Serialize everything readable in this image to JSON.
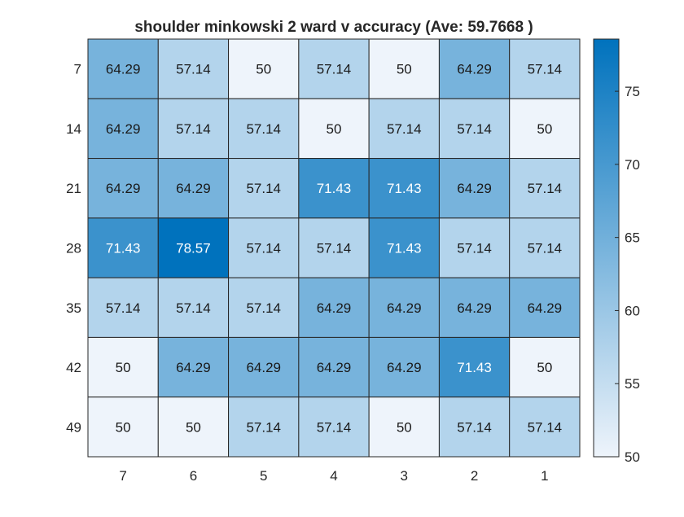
{
  "chart_data": {
    "type": "heatmap",
    "title": "shoulder minkowski 2 ward v accuracy (Ave:  59.7668 )",
    "x_categories": [
      "7",
      "6",
      "5",
      "4",
      "3",
      "2",
      "1"
    ],
    "y_categories": [
      "7",
      "14",
      "21",
      "28",
      "35",
      "42",
      "49"
    ],
    "values": [
      [
        64.29,
        57.14,
        50,
        57.14,
        50,
        64.29,
        57.14
      ],
      [
        64.29,
        57.14,
        57.14,
        50,
        57.14,
        57.14,
        50
      ],
      [
        64.29,
        64.29,
        57.14,
        71.43,
        71.43,
        64.29,
        57.14
      ],
      [
        71.43,
        78.57,
        57.14,
        57.14,
        71.43,
        57.14,
        57.14
      ],
      [
        57.14,
        57.14,
        57.14,
        64.29,
        64.29,
        64.29,
        64.29
      ],
      [
        50,
        64.29,
        64.29,
        64.29,
        64.29,
        71.43,
        50
      ],
      [
        50,
        50,
        57.14,
        57.14,
        50,
        57.14,
        57.14
      ]
    ],
    "value_labels": [
      [
        "64.29",
        "57.14",
        "50",
        "57.14",
        "50",
        "64.29",
        "57.14"
      ],
      [
        "64.29",
        "57.14",
        "57.14",
        "50",
        "57.14",
        "57.14",
        "50"
      ],
      [
        "64.29",
        "64.29",
        "57.14",
        "71.43",
        "71.43",
        "64.29",
        "57.14"
      ],
      [
        "71.43",
        "78.57",
        "57.14",
        "57.14",
        "71.43",
        "57.14",
        "57.14"
      ],
      [
        "57.14",
        "57.14",
        "57.14",
        "64.29",
        "64.29",
        "64.29",
        "64.29"
      ],
      [
        "50",
        "64.29",
        "64.29",
        "64.29",
        "64.29",
        "71.43",
        "50"
      ],
      [
        "50",
        "50",
        "57.14",
        "57.14",
        "50",
        "57.14",
        "57.14"
      ]
    ],
    "colorbar": {
      "range": [
        50,
        78.57
      ],
      "ticks": [
        "50",
        "55",
        "60",
        "65",
        "70",
        "75"
      ],
      "low_color": "#eef4fb",
      "high_color": "#0072bd"
    },
    "text_color_dark": "#1a1a1a",
    "text_color_light": "#ffffff",
    "grid_color": "#262626"
  }
}
